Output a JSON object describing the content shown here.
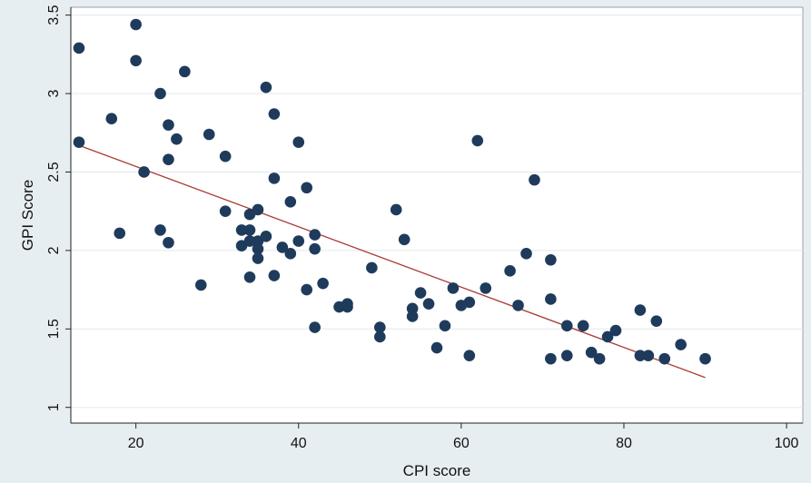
{
  "chart_data": {
    "type": "scatter",
    "title": "",
    "xlabel": "CPI score",
    "ylabel": "GPI Score",
    "xlim": [
      12,
      102
    ],
    "ylim": [
      0.9,
      3.55
    ],
    "xticks": [
      20,
      40,
      60,
      80,
      100
    ],
    "yticks": [
      1,
      1.5,
      2,
      2.5,
      3,
      3.5
    ],
    "xtick_labels": [
      "20",
      "40",
      "60",
      "80",
      "100"
    ],
    "ytick_labels": [
      "1",
      "1.5",
      "2",
      "2.5",
      "3",
      "3.5"
    ],
    "grid": "horizontal",
    "legend": "none",
    "colors": {
      "background": "#e7eef2",
      "plot_background": "#ffffff",
      "point": "#1f3b5c",
      "fit_line": "#a83a34",
      "grid": "#e3e8ed"
    },
    "points": [
      {
        "x": 13,
        "y": 3.29
      },
      {
        "x": 13,
        "y": 2.69
      },
      {
        "x": 17,
        "y": 2.84
      },
      {
        "x": 18,
        "y": 2.11
      },
      {
        "x": 20,
        "y": 3.44
      },
      {
        "x": 20,
        "y": 3.21
      },
      {
        "x": 21,
        "y": 2.5
      },
      {
        "x": 23,
        "y": 3.0
      },
      {
        "x": 23,
        "y": 2.13
      },
      {
        "x": 24,
        "y": 2.8
      },
      {
        "x": 24,
        "y": 2.58
      },
      {
        "x": 24,
        "y": 2.05
      },
      {
        "x": 25,
        "y": 2.71
      },
      {
        "x": 26,
        "y": 3.14
      },
      {
        "x": 28,
        "y": 1.78
      },
      {
        "x": 29,
        "y": 2.74
      },
      {
        "x": 31,
        "y": 2.6
      },
      {
        "x": 31,
        "y": 2.25
      },
      {
        "x": 33,
        "y": 2.13
      },
      {
        "x": 33,
        "y": 2.03
      },
      {
        "x": 34,
        "y": 2.23
      },
      {
        "x": 34,
        "y": 2.13
      },
      {
        "x": 34,
        "y": 2.06
      },
      {
        "x": 34,
        "y": 1.83
      },
      {
        "x": 35,
        "y": 2.26
      },
      {
        "x": 35,
        "y": 2.06
      },
      {
        "x": 35,
        "y": 2.01
      },
      {
        "x": 35,
        "y": 1.95
      },
      {
        "x": 36,
        "y": 3.04
      },
      {
        "x": 36,
        "y": 2.09
      },
      {
        "x": 37,
        "y": 2.87
      },
      {
        "x": 37,
        "y": 2.46
      },
      {
        "x": 37,
        "y": 1.84
      },
      {
        "x": 38,
        "y": 2.02
      },
      {
        "x": 39,
        "y": 2.31
      },
      {
        "x": 39,
        "y": 1.98
      },
      {
        "x": 40,
        "y": 2.69
      },
      {
        "x": 40,
        "y": 2.06
      },
      {
        "x": 41,
        "y": 2.4
      },
      {
        "x": 41,
        "y": 1.75
      },
      {
        "x": 42,
        "y": 2.1
      },
      {
        "x": 42,
        "y": 2.01
      },
      {
        "x": 42,
        "y": 1.51
      },
      {
        "x": 43,
        "y": 1.79
      },
      {
        "x": 45,
        "y": 1.64
      },
      {
        "x": 46,
        "y": 1.66
      },
      {
        "x": 46,
        "y": 1.64
      },
      {
        "x": 49,
        "y": 1.89
      },
      {
        "x": 50,
        "y": 1.51
      },
      {
        "x": 50,
        "y": 1.45
      },
      {
        "x": 52,
        "y": 2.26
      },
      {
        "x": 53,
        "y": 2.07
      },
      {
        "x": 54,
        "y": 1.63
      },
      {
        "x": 54,
        "y": 1.58
      },
      {
        "x": 55,
        "y": 1.73
      },
      {
        "x": 56,
        "y": 1.66
      },
      {
        "x": 57,
        "y": 1.38
      },
      {
        "x": 58,
        "y": 1.52
      },
      {
        "x": 59,
        "y": 1.76
      },
      {
        "x": 60,
        "y": 1.65
      },
      {
        "x": 61,
        "y": 1.67
      },
      {
        "x": 61,
        "y": 1.33
      },
      {
        "x": 62,
        "y": 2.7
      },
      {
        "x": 63,
        "y": 1.76
      },
      {
        "x": 66,
        "y": 1.87
      },
      {
        "x": 67,
        "y": 1.65
      },
      {
        "x": 68,
        "y": 1.98
      },
      {
        "x": 69,
        "y": 2.45
      },
      {
        "x": 71,
        "y": 1.94
      },
      {
        "x": 71,
        "y": 1.69
      },
      {
        "x": 71,
        "y": 1.31
      },
      {
        "x": 73,
        "y": 1.52
      },
      {
        "x": 73,
        "y": 1.33
      },
      {
        "x": 75,
        "y": 1.52
      },
      {
        "x": 76,
        "y": 1.35
      },
      {
        "x": 77,
        "y": 1.31
      },
      {
        "x": 78,
        "y": 1.45
      },
      {
        "x": 79,
        "y": 1.49
      },
      {
        "x": 82,
        "y": 1.62
      },
      {
        "x": 82,
        "y": 1.33
      },
      {
        "x": 83,
        "y": 1.33
      },
      {
        "x": 84,
        "y": 1.55
      },
      {
        "x": 85,
        "y": 1.31
      },
      {
        "x": 87,
        "y": 1.4
      },
      {
        "x": 90,
        "y": 1.31
      }
    ],
    "fit_line": {
      "x1": 13,
      "y1": 2.67,
      "x2": 90,
      "y2": 1.19
    }
  }
}
